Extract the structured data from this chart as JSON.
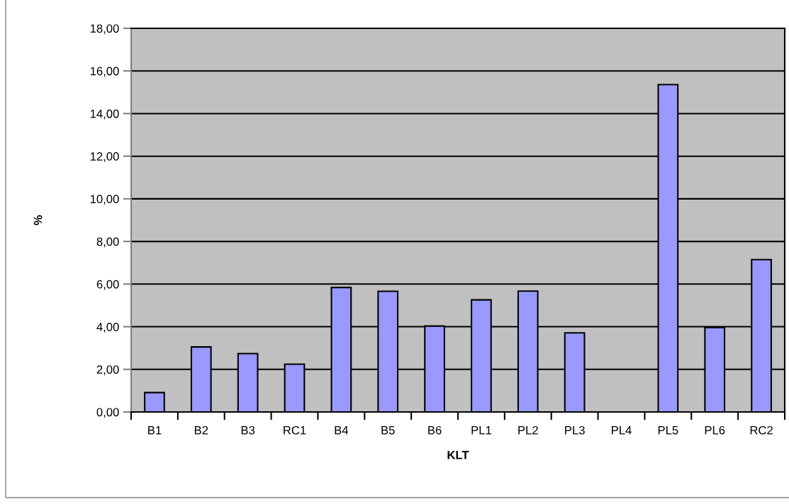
{
  "chart_data": {
    "type": "bar",
    "xlabel": "KLT",
    "ylabel": "%",
    "categories": [
      "B1",
      "B2",
      "B3",
      "RC1",
      "B4",
      "B5",
      "B6",
      "PL1",
      "PL2",
      "PL3",
      "PL4",
      "PL5",
      "PL6",
      "RC2"
    ],
    "values": [
      0.91,
      3.05,
      2.74,
      2.24,
      5.84,
      5.66,
      4.03,
      5.26,
      5.67,
      3.71,
      null,
      15.36,
      3.96,
      7.15
    ],
    "color": "#9999ff",
    "ylim": [
      0,
      18
    ],
    "yticks": [
      {
        "value": 0,
        "label": "0,00"
      },
      {
        "value": 2,
        "label": "2,00"
      },
      {
        "value": 4,
        "label": "4,00"
      },
      {
        "value": 6,
        "label": "6,00"
      },
      {
        "value": 8,
        "label": "8,00"
      },
      {
        "value": 10,
        "label": "10,00"
      },
      {
        "value": 12,
        "label": "12,00"
      },
      {
        "value": 14,
        "label": "14,00"
      },
      {
        "value": 16,
        "label": "16,00"
      },
      {
        "value": 18,
        "label": "18,00"
      }
    ],
    "grid": "y",
    "legend": false
  }
}
